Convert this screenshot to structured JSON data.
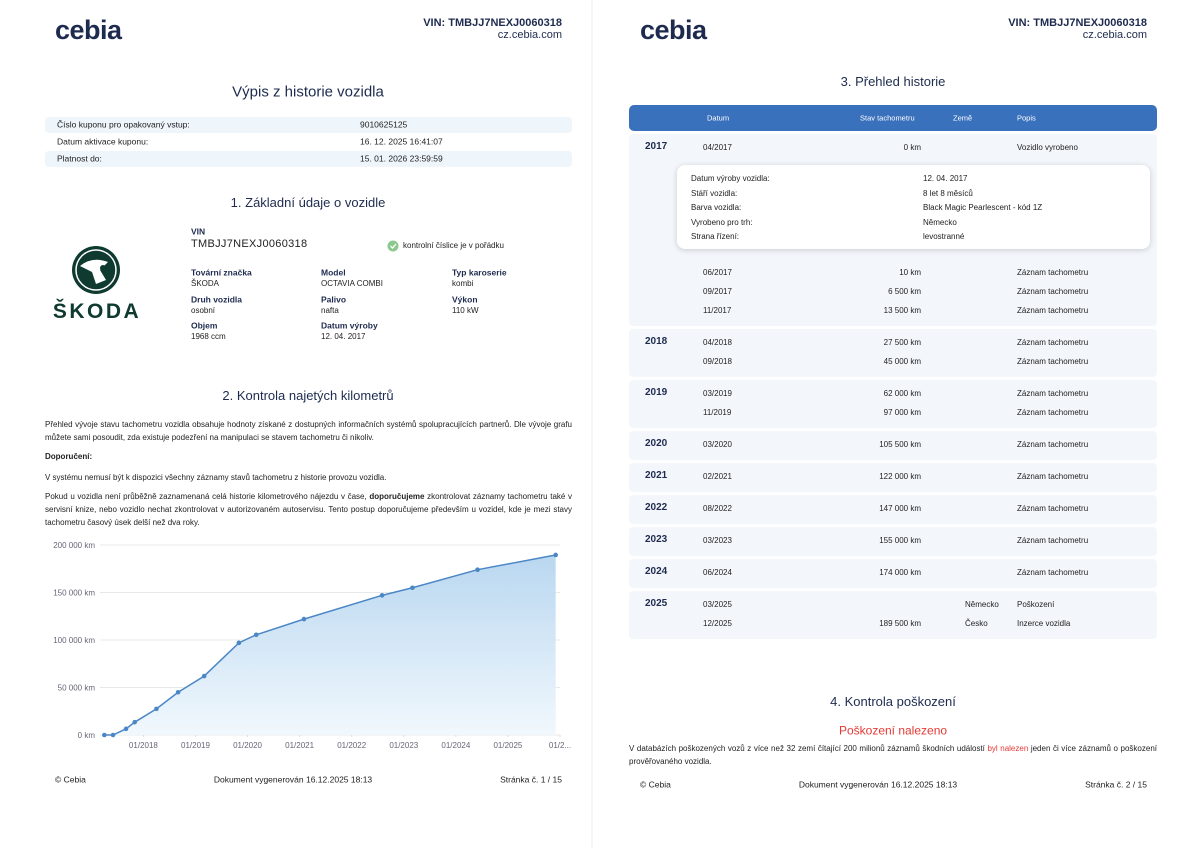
{
  "pages": [
    {
      "header": {
        "logo": "cebia",
        "vin": "VIN: TMBJJ7NEXJ0060318",
        "site": "cz.cebia.com"
      },
      "title": "Výpis z historie vozidla",
      "coupon": [
        {
          "label": "Číslo kuponu pro opakovaný vstup:",
          "value": "9010625125"
        },
        {
          "label": "Datum aktivace kuponu:",
          "value": "16. 12. 2025 16:41:07"
        },
        {
          "label": "Platnost do:",
          "value": "15. 01. 2026 23:59:59"
        }
      ],
      "vehicle": {
        "title": "1. Základní údaje o vozidle",
        "brand_logo": "ŠKODA",
        "vin_label": "VIN",
        "vin": "TMBJJ7NEXJ0060318",
        "check": "kontrolní číslice je v pořádku",
        "fields": [
          {
            "label": "Tovární značka",
            "value": "ŠKODA"
          },
          {
            "label": "Model",
            "value": "OCTAVIA COMBI"
          },
          {
            "label": "Typ karoserie",
            "value": "kombi"
          },
          {
            "label": "Druh vozidla",
            "value": "osobní"
          },
          {
            "label": "Palivo",
            "value": "nafta"
          },
          {
            "label": "Výkon",
            "value": "110 kW"
          },
          {
            "label": "Objem",
            "value": "1968 ccm"
          },
          {
            "label": "Datum výroby",
            "value": "12. 04. 2017"
          }
        ]
      },
      "mileage": {
        "title": "2. Kontrola najetých kilometrů",
        "intro": "Přehled vývoje stavu tachometru vozidla obsahuje hodnoty získané z dostupných informačních systémů spolupracujících partnerů. Dle vývoje grafu můžete sami posoudit, zda existuje podezření na manipulaci se stavem tachometru či nikoliv.",
        "recommendation_label": "Doporučení:",
        "note": "V systému nemusí být k dispozici všechny záznamy stavů tachometru z historie provozu vozidla.",
        "advice": [
          "Pokud u vozidla není průběžně zaznamenaná celá historie kilometrového nájezdu v čase, ",
          "doporučujeme",
          " zkontrolovat záznamy tachometru také v servisní knize, nebo vozidlo nechat zkontrolovat v autorizovaném autoservisu. Tento postup doporučujeme především u vozidel, kde je mezi stavy tachometru časový úsek delší než dva roky."
        ]
      },
      "footer": {
        "left": "© Cebia",
        "center": "Dokument vygenerován 16.12.2025 18:13",
        "right": "Stránka č. 1 / 15"
      }
    },
    {
      "header": {
        "logo": "cebia",
        "vin": "VIN: TMBJJ7NEXJ0060318",
        "site": "cz.cebia.com"
      },
      "history": {
        "title": "3. Přehled historie",
        "columns": [
          "Datum",
          "Stav tachometru",
          "Země",
          "Popis"
        ],
        "groups": [
          {
            "year": "2017",
            "rows": [
              {
                "date": "04/2017",
                "km": "0 km",
                "desc": "Vozidlo vyrobeno"
              },
              {
                "date": "06/2017",
                "km": "10 km",
                "desc": "Záznam tachometru"
              },
              {
                "date": "09/2017",
                "km": "6 500 km",
                "desc": "Záznam tachometru"
              },
              {
                "date": "11/2017",
                "km": "13 500 km",
                "desc": "Záznam tachometru"
              }
            ],
            "detail": [
              {
                "label": "Datum výroby vozidla:",
                "value": "12. 04. 2017"
              },
              {
                "label": "Stáří vozidla:",
                "value": "8 let 8 měsíců"
              },
              {
                "label": "Barva vozidla:",
                "value": "Black Magic Pearlescent - kód 1Z"
              },
              {
                "label": "Vyrobeno pro trh:",
                "value": "Německo"
              },
              {
                "label": "Strana řízení:",
                "value": "levostranné"
              }
            ]
          },
          {
            "year": "2018",
            "rows": [
              {
                "date": "04/2018",
                "km": "27 500 km",
                "desc": "Záznam tachometru"
              },
              {
                "date": "09/2018",
                "km": "45 000 km",
                "desc": "Záznam tachometru"
              }
            ]
          },
          {
            "year": "2019",
            "rows": [
              {
                "date": "03/2019",
                "km": "62 000 km",
                "desc": "Záznam tachometru"
              },
              {
                "date": "11/2019",
                "km": "97 000 km",
                "desc": "Záznam tachometru"
              }
            ]
          },
          {
            "year": "2020",
            "rows": [
              {
                "date": "03/2020",
                "km": "105 500 km",
                "desc": "Záznam tachometru"
              }
            ]
          },
          {
            "year": "2021",
            "rows": [
              {
                "date": "02/2021",
                "km": "122 000 km",
                "desc": "Záznam tachometru"
              }
            ]
          },
          {
            "year": "2022",
            "rows": [
              {
                "date": "08/2022",
                "km": "147 000 km",
                "desc": "Záznam tachometru"
              }
            ]
          },
          {
            "year": "2023",
            "rows": [
              {
                "date": "03/2023",
                "km": "155 000 km",
                "desc": "Záznam tachometru"
              }
            ]
          },
          {
            "year": "2024",
            "rows": [
              {
                "date": "06/2024",
                "km": "174 000 km",
                "desc": "Záznam tachometru"
              }
            ]
          },
          {
            "year": "2025",
            "rows": [
              {
                "date": "03/2025",
                "country": "Německo",
                "flag_colors": [
                  "#000000",
                  "#dd0000",
                  "#ffce00"
                ],
                "desc": "Poškození"
              },
              {
                "date": "12/2025",
                "km": "189 500 km",
                "country": "Česko",
                "flag_colors": [
                  "#ffffff",
                  "#d7141a",
                  "#11457e"
                ],
                "desc": "Inzerce vozidla"
              }
            ]
          }
        ]
      },
      "damage": {
        "title": "4. Kontrola poškození",
        "status": "Poškození nalezeno",
        "text": [
          "V databázích poškozených vozů z více než 32 zemí čítající 200 milionů záznamů škodních událostí ",
          "byl nalezen",
          " jeden či více záznamů o poškození prověřovaného vozidla."
        ]
      },
      "footer": {
        "left": "© Cebia",
        "center": "Dokument vygenerován 16.12.2025 18:13",
        "right": "Stránka č. 2 / 15"
      }
    }
  ],
  "chart_data": {
    "type": "line",
    "x": [
      "2017-04",
      "2017-06",
      "2017-09",
      "2017-11",
      "2018-04",
      "2018-09",
      "2019-03",
      "2019-11",
      "2020-03",
      "2021-02",
      "2022-08",
      "2023-03",
      "2024-06",
      "2025-12"
    ],
    "series": [
      {
        "color": "#4b87c6",
        "values": [
          0,
          10,
          6500,
          13500,
          27500,
          45000,
          62000,
          97000,
          105500,
          122000,
          147000,
          155000,
          174000,
          189500
        ]
      }
    ],
    "xlim": [
      "2017-03",
      "2026-01"
    ],
    "xticks": [
      {
        "value": "2018-01",
        "label": "01/2018"
      },
      {
        "value": "2019-01",
        "label": "01/2019"
      },
      {
        "value": "2020-01",
        "label": "01/2020"
      },
      {
        "value": "2021-01",
        "label": "01/2021"
      },
      {
        "value": "2022-01",
        "label": "01/2022"
      },
      {
        "value": "2023-01",
        "label": "01/2023"
      },
      {
        "value": "2024-01",
        "label": "01/2024"
      },
      {
        "value": "2025-01",
        "label": "01/2025"
      },
      {
        "value": "2026-01",
        "label": "01/2..."
      }
    ],
    "ylim": [
      0,
      200000
    ],
    "yticks": [
      {
        "value": 0,
        "label": "0 km"
      },
      {
        "value": 50000,
        "label": "50 000 km"
      },
      {
        "value": 100000,
        "label": "100 000 km"
      },
      {
        "value": 150000,
        "label": "150 000 km"
      },
      {
        "value": 200000,
        "label": "200 000 km"
      }
    ],
    "grid": true,
    "area": true
  }
}
